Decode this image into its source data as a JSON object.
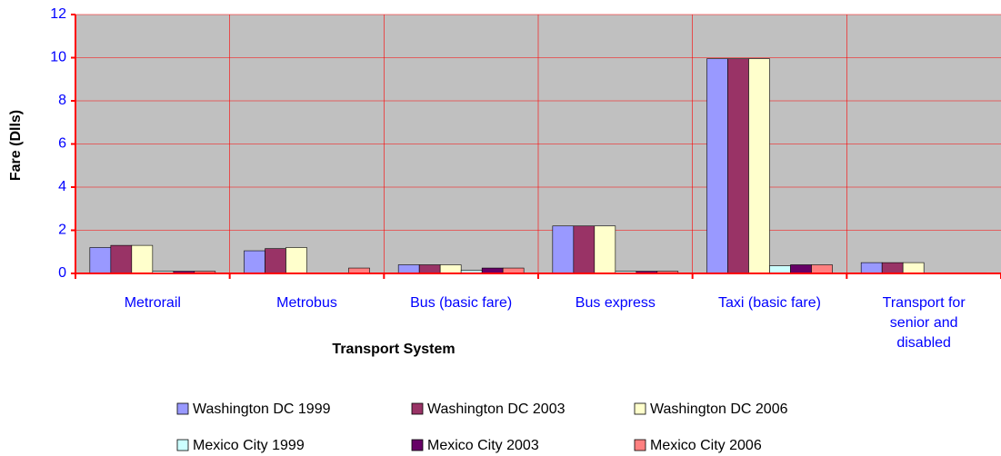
{
  "chart_data": {
    "type": "bar",
    "x_label": "Transport System",
    "y_label": "Fare (Dlls)",
    "categories": [
      "Metrorail",
      "Metrobus",
      "Bus (basic fare)",
      "Bus express",
      "Taxi (basic fare)",
      "Transport for senior and disabled"
    ],
    "series": [
      {
        "name": "Washington DC 1999",
        "color": "#9999ff",
        "values": [
          1.2,
          1.05,
          0.4,
          2.2,
          9.95,
          0.5
        ]
      },
      {
        "name": "Washington DC 2003",
        "color": "#993366",
        "values": [
          1.3,
          1.15,
          0.4,
          2.2,
          9.95,
          0.5
        ]
      },
      {
        "name": "Washington DC 2006",
        "color": "#ffffcc",
        "values": [
          1.3,
          1.2,
          0.4,
          2.2,
          9.95,
          0.5
        ]
      },
      {
        "name": "Mexico City 1999",
        "color": "#ccffff",
        "values": [
          0.1,
          0,
          0.15,
          0.1,
          0.35,
          0.03
        ]
      },
      {
        "name": "Mexico City 2003",
        "color": "#660066",
        "values": [
          0.1,
          0,
          0.25,
          0.1,
          0.4,
          0.03
        ]
      },
      {
        "name": "Mexico City 2006",
        "color": "#ff8080",
        "values": [
          0.1,
          0.25,
          0.25,
          0.1,
          0.4,
          0.03
        ]
      }
    ],
    "ylim": [
      0,
      12
    ],
    "yticks": [
      0,
      2,
      4,
      6,
      8,
      10,
      12
    ],
    "grid": true,
    "legend": "bottom"
  }
}
